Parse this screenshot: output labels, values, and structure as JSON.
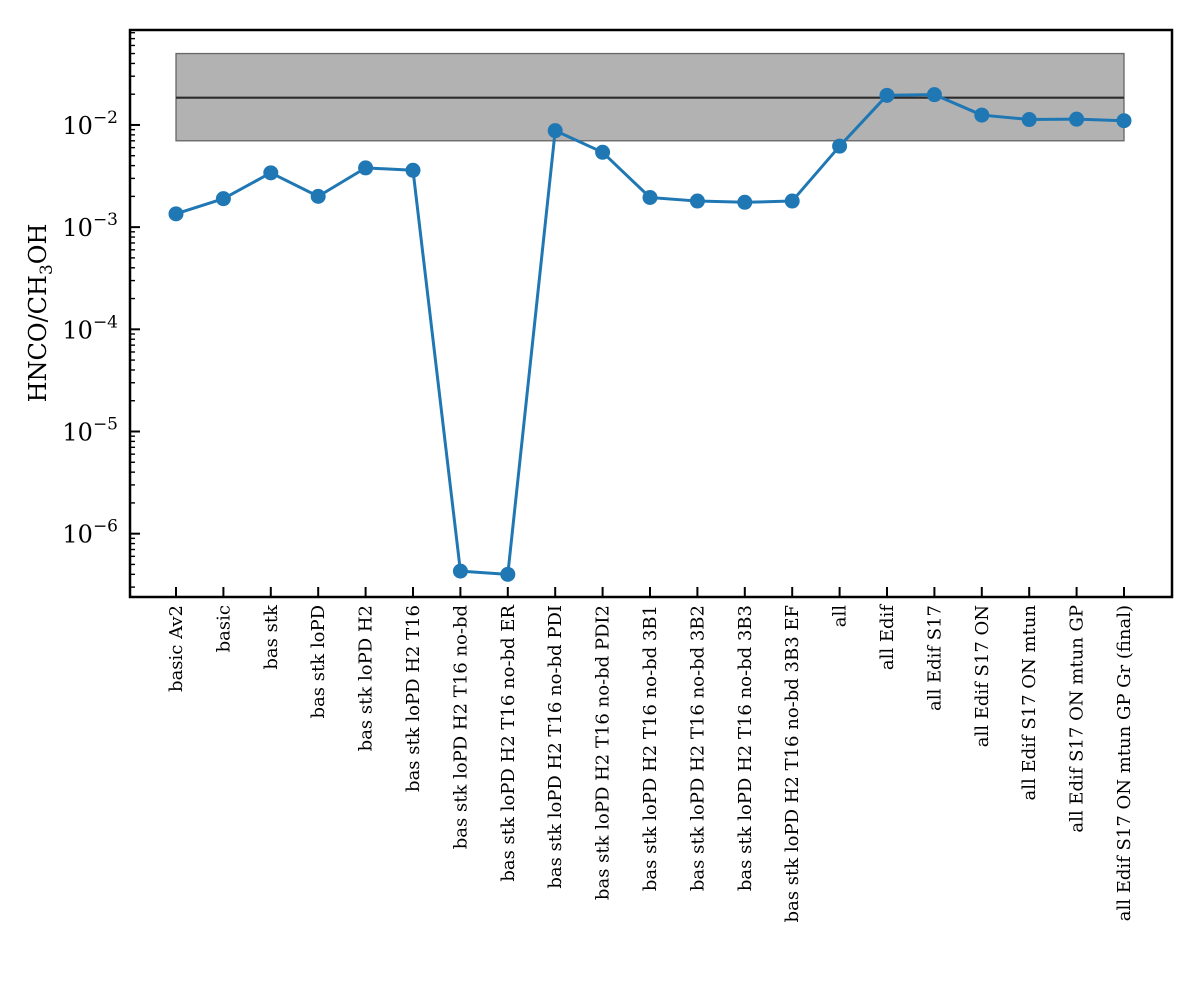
{
  "chart_data": {
    "type": "line",
    "title": "",
    "xlabel": "",
    "ylabel": {
      "base": "HNCO/CH",
      "sub": "3",
      "rest": "OH"
    },
    "yscale": "log",
    "ylim": [
      2.4e-07,
      0.085
    ],
    "yticks": [
      {
        "value": 1e-06,
        "base": "10",
        "exp": "−6"
      },
      {
        "value": 1e-05,
        "base": "10",
        "exp": "−5"
      },
      {
        "value": 0.0001,
        "base": "10",
        "exp": "−4"
      },
      {
        "value": 0.001,
        "base": "10",
        "exp": "−3"
      },
      {
        "value": 0.01,
        "base": "10",
        "exp": "−2"
      }
    ],
    "grid": false,
    "categories": [
      "basic Av2",
      "basic",
      "bas stk",
      "bas stk loPD",
      "bas stk loPD H2",
      "bas stk loPD H2 T16",
      "bas stk loPD H2 T16 no-bd",
      "bas stk loPD H2 T16 no-bd ER",
      "bas stk loPD H2 T16 no-bd PDI",
      "bas stk loPD H2 T16 no-bd PDI2",
      "bas stk loPD H2 T16 no-bd 3B1",
      "bas stk loPD H2 T16 no-bd 3B2",
      "bas stk loPD H2 T16 no-bd 3B3",
      "bas stk loPD H2 T16 no-bd 3B3 EF",
      "all",
      "all Edif",
      "all Edif S17",
      "all Edif S17 ON",
      "all Edif S17 ON mtun",
      "all Edif S17 ON mtun GP",
      "all Edif S17 ON mtun GP Gr (final)"
    ],
    "series": [
      {
        "values": [
          0.00135,
          0.0019,
          0.0034,
          0.002,
          0.0038,
          0.0036,
          4.3e-07,
          4e-07,
          0.0088,
          0.0054,
          0.00195,
          0.0018,
          0.00175,
          0.0018,
          0.0062,
          0.0195,
          0.0198,
          0.0125,
          0.0113,
          0.0114,
          0.011
        ],
        "color": "#1f77b4"
      }
    ],
    "observed_band": {
      "low": 0.007,
      "high": 0.05,
      "center": 0.0185,
      "fill_color": "#b2b2b2",
      "edge_color": "#666666",
      "center_color": "#2b2b2b"
    }
  }
}
